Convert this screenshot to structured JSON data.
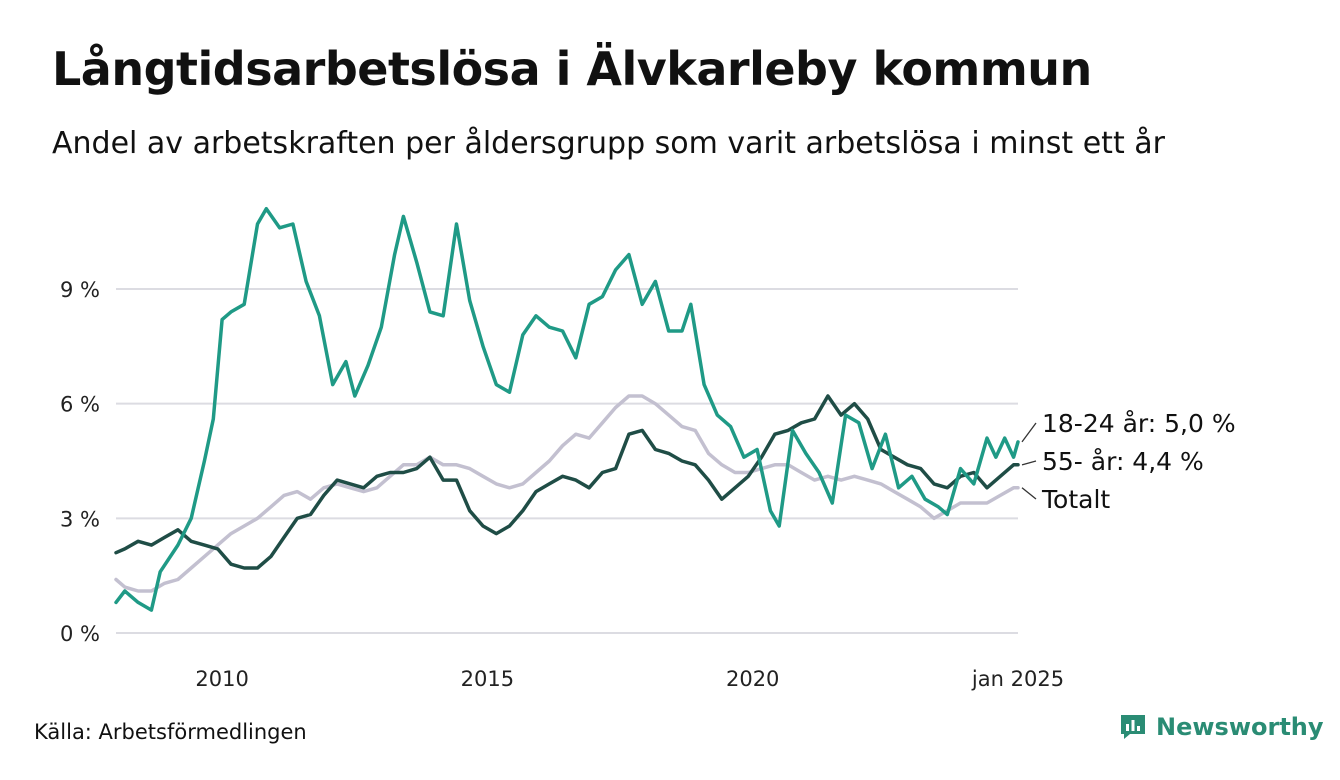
{
  "title": "Långtidsarbetslösa i Älvkarleby kommun",
  "subtitle": "Andel av arbetskraften per åldersgrupp som varit arbetslösa i minst ett år",
  "source": "Källa: Arbetsförmedlingen",
  "brand": {
    "name": "Newsworthy",
    "icon": "newsworthy-logo-icon",
    "color": "#2a8c74"
  },
  "chart_data": {
    "type": "line",
    "xlim": [
      "2008-01",
      "2025-01"
    ],
    "ylim": [
      0,
      12
    ],
    "x_ticks": [
      {
        "label": "2010",
        "date": "2010-01"
      },
      {
        "label": "2015",
        "date": "2015-01"
      },
      {
        "label": "2020",
        "date": "2020-01"
      },
      {
        "label": "jan 2025",
        "date": "2025-01"
      }
    ],
    "y_ticks": [
      {
        "label": "0 %",
        "value": 0
      },
      {
        "label": "3 %",
        "value": 3
      },
      {
        "label": "6 %",
        "value": 6
      },
      {
        "label": "9 %",
        "value": 9
      }
    ],
    "grid": "horizontal",
    "legend": "end-of-line labels",
    "series": [
      {
        "label": "Totalt",
        "color": "#c3c0d0",
        "points": [
          [
            "2008-01",
            1.4
          ],
          [
            "2008-03",
            1.2
          ],
          [
            "2008-06",
            1.1
          ],
          [
            "2008-09",
            1.1
          ],
          [
            "2008-12",
            1.3
          ],
          [
            "2009-03",
            1.4
          ],
          [
            "2009-06",
            1.7
          ],
          [
            "2009-09",
            2.0
          ],
          [
            "2009-12",
            2.3
          ],
          [
            "2010-03",
            2.6
          ],
          [
            "2010-06",
            2.8
          ],
          [
            "2010-09",
            3.0
          ],
          [
            "2010-12",
            3.3
          ],
          [
            "2011-03",
            3.6
          ],
          [
            "2011-06",
            3.7
          ],
          [
            "2011-09",
            3.5
          ],
          [
            "2011-12",
            3.8
          ],
          [
            "2012-03",
            3.9
          ],
          [
            "2012-06",
            3.8
          ],
          [
            "2012-09",
            3.7
          ],
          [
            "2012-12",
            3.8
          ],
          [
            "2013-03",
            4.1
          ],
          [
            "2013-06",
            4.4
          ],
          [
            "2013-09",
            4.4
          ],
          [
            "2013-12",
            4.6
          ],
          [
            "2014-03",
            4.4
          ],
          [
            "2014-06",
            4.4
          ],
          [
            "2014-09",
            4.3
          ],
          [
            "2014-12",
            4.1
          ],
          [
            "2015-03",
            3.9
          ],
          [
            "2015-06",
            3.8
          ],
          [
            "2015-09",
            3.9
          ],
          [
            "2015-12",
            4.2
          ],
          [
            "2016-03",
            4.5
          ],
          [
            "2016-06",
            4.9
          ],
          [
            "2016-09",
            5.2
          ],
          [
            "2016-12",
            5.1
          ],
          [
            "2017-03",
            5.5
          ],
          [
            "2017-06",
            5.9
          ],
          [
            "2017-09",
            6.2
          ],
          [
            "2017-12",
            6.2
          ],
          [
            "2018-03",
            6.0
          ],
          [
            "2018-06",
            5.7
          ],
          [
            "2018-09",
            5.4
          ],
          [
            "2018-12",
            5.3
          ],
          [
            "2019-03",
            4.7
          ],
          [
            "2019-06",
            4.4
          ],
          [
            "2019-09",
            4.2
          ],
          [
            "2019-12",
            4.2
          ],
          [
            "2020-03",
            4.3
          ],
          [
            "2020-06",
            4.4
          ],
          [
            "2020-09",
            4.4
          ],
          [
            "2020-12",
            4.2
          ],
          [
            "2021-03",
            4.0
          ],
          [
            "2021-06",
            4.1
          ],
          [
            "2021-09",
            4.0
          ],
          [
            "2021-12",
            4.1
          ],
          [
            "2022-03",
            4.0
          ],
          [
            "2022-06",
            3.9
          ],
          [
            "2022-09",
            3.7
          ],
          [
            "2022-12",
            3.5
          ],
          [
            "2023-03",
            3.3
          ],
          [
            "2023-06",
            3.0
          ],
          [
            "2023-09",
            3.2
          ],
          [
            "2023-12",
            3.4
          ],
          [
            "2024-03",
            3.4
          ],
          [
            "2024-06",
            3.4
          ],
          [
            "2024-09",
            3.6
          ],
          [
            "2024-12",
            3.8
          ],
          [
            "2025-01",
            3.8
          ]
        ]
      },
      {
        "label": "55- år: 4,4 %",
        "color": "#1f4d46",
        "points": [
          [
            "2008-01",
            2.1
          ],
          [
            "2008-03",
            2.2
          ],
          [
            "2008-06",
            2.4
          ],
          [
            "2008-09",
            2.3
          ],
          [
            "2008-12",
            2.5
          ],
          [
            "2009-03",
            2.7
          ],
          [
            "2009-06",
            2.4
          ],
          [
            "2009-09",
            2.3
          ],
          [
            "2009-12",
            2.2
          ],
          [
            "2010-03",
            1.8
          ],
          [
            "2010-06",
            1.7
          ],
          [
            "2010-09",
            1.7
          ],
          [
            "2010-12",
            2.0
          ],
          [
            "2011-03",
            2.5
          ],
          [
            "2011-06",
            3.0
          ],
          [
            "2011-09",
            3.1
          ],
          [
            "2011-12",
            3.6
          ],
          [
            "2012-03",
            4.0
          ],
          [
            "2012-06",
            3.9
          ],
          [
            "2012-09",
            3.8
          ],
          [
            "2012-12",
            4.1
          ],
          [
            "2013-03",
            4.2
          ],
          [
            "2013-06",
            4.2
          ],
          [
            "2013-09",
            4.3
          ],
          [
            "2013-12",
            4.6
          ],
          [
            "2014-03",
            4.0
          ],
          [
            "2014-06",
            4.0
          ],
          [
            "2014-09",
            3.2
          ],
          [
            "2014-12",
            2.8
          ],
          [
            "2015-03",
            2.6
          ],
          [
            "2015-06",
            2.8
          ],
          [
            "2015-09",
            3.2
          ],
          [
            "2015-12",
            3.7
          ],
          [
            "2016-03",
            3.9
          ],
          [
            "2016-06",
            4.1
          ],
          [
            "2016-09",
            4.0
          ],
          [
            "2016-12",
            3.8
          ],
          [
            "2017-03",
            4.2
          ],
          [
            "2017-06",
            4.3
          ],
          [
            "2017-09",
            5.2
          ],
          [
            "2017-12",
            5.3
          ],
          [
            "2018-03",
            4.8
          ],
          [
            "2018-06",
            4.7
          ],
          [
            "2018-09",
            4.5
          ],
          [
            "2018-12",
            4.4
          ],
          [
            "2019-03",
            4.0
          ],
          [
            "2019-06",
            3.5
          ],
          [
            "2019-09",
            3.8
          ],
          [
            "2019-12",
            4.1
          ],
          [
            "2020-03",
            4.6
          ],
          [
            "2020-06",
            5.2
          ],
          [
            "2020-09",
            5.3
          ],
          [
            "2020-12",
            5.5
          ],
          [
            "2021-03",
            5.6
          ],
          [
            "2021-06",
            6.2
          ],
          [
            "2021-09",
            5.7
          ],
          [
            "2021-12",
            6.0
          ],
          [
            "2022-03",
            5.6
          ],
          [
            "2022-06",
            4.8
          ],
          [
            "2022-09",
            4.6
          ],
          [
            "2022-12",
            4.4
          ],
          [
            "2023-03",
            4.3
          ],
          [
            "2023-06",
            3.9
          ],
          [
            "2023-09",
            3.8
          ],
          [
            "2023-12",
            4.1
          ],
          [
            "2024-03",
            4.2
          ],
          [
            "2024-06",
            3.8
          ],
          [
            "2024-09",
            4.1
          ],
          [
            "2024-12",
            4.4
          ],
          [
            "2025-01",
            4.4
          ]
        ]
      },
      {
        "label": "18-24 år: 5,0 %",
        "color": "#1f9a86",
        "points": [
          [
            "2008-01",
            0.8
          ],
          [
            "2008-03",
            1.1
          ],
          [
            "2008-06",
            0.8
          ],
          [
            "2008-09",
            0.6
          ],
          [
            "2008-11",
            1.6
          ],
          [
            "2009-03",
            2.3
          ],
          [
            "2009-06",
            3.0
          ],
          [
            "2009-09",
            4.5
          ],
          [
            "2009-11",
            5.6
          ],
          [
            "2010-01",
            8.2
          ],
          [
            "2010-03",
            8.4
          ],
          [
            "2010-06",
            8.6
          ],
          [
            "2010-09",
            10.7
          ],
          [
            "2010-11",
            11.1
          ],
          [
            "2011-02",
            10.6
          ],
          [
            "2011-05",
            10.7
          ],
          [
            "2011-08",
            9.2
          ],
          [
            "2011-11",
            8.3
          ],
          [
            "2012-02",
            6.5
          ],
          [
            "2012-05",
            7.1
          ],
          [
            "2012-07",
            6.2
          ],
          [
            "2012-10",
            7.0
          ],
          [
            "2013-01",
            8.0
          ],
          [
            "2013-04",
            9.9
          ],
          [
            "2013-06",
            10.9
          ],
          [
            "2013-09",
            9.7
          ],
          [
            "2013-12",
            8.4
          ],
          [
            "2014-03",
            8.3
          ],
          [
            "2014-06",
            10.7
          ],
          [
            "2014-09",
            8.7
          ],
          [
            "2014-12",
            7.5
          ],
          [
            "2015-03",
            6.5
          ],
          [
            "2015-06",
            6.3
          ],
          [
            "2015-09",
            7.8
          ],
          [
            "2015-12",
            8.3
          ],
          [
            "2016-03",
            8.0
          ],
          [
            "2016-06",
            7.9
          ],
          [
            "2016-09",
            7.2
          ],
          [
            "2016-12",
            8.6
          ],
          [
            "2017-03",
            8.8
          ],
          [
            "2017-06",
            9.5
          ],
          [
            "2017-09",
            9.9
          ],
          [
            "2017-12",
            8.6
          ],
          [
            "2018-03",
            9.2
          ],
          [
            "2018-06",
            7.9
          ],
          [
            "2018-09",
            7.9
          ],
          [
            "2018-11",
            8.6
          ],
          [
            "2019-02",
            6.5
          ],
          [
            "2019-05",
            5.7
          ],
          [
            "2019-08",
            5.4
          ],
          [
            "2019-11",
            4.6
          ],
          [
            "2020-02",
            4.8
          ],
          [
            "2020-05",
            3.2
          ],
          [
            "2020-07",
            2.8
          ],
          [
            "2020-10",
            5.3
          ],
          [
            "2021-01",
            4.7
          ],
          [
            "2021-04",
            4.2
          ],
          [
            "2021-07",
            3.4
          ],
          [
            "2021-10",
            5.7
          ],
          [
            "2022-01",
            5.5
          ],
          [
            "2022-04",
            4.3
          ],
          [
            "2022-07",
            5.2
          ],
          [
            "2022-10",
            3.8
          ],
          [
            "2023-01",
            4.1
          ],
          [
            "2023-04",
            3.5
          ],
          [
            "2023-07",
            3.3
          ],
          [
            "2023-09",
            3.1
          ],
          [
            "2023-12",
            4.3
          ],
          [
            "2024-03",
            3.9
          ],
          [
            "2024-06",
            5.1
          ],
          [
            "2024-08",
            4.6
          ],
          [
            "2024-10",
            5.1
          ],
          [
            "2024-12",
            4.6
          ],
          [
            "2025-01",
            5.0
          ]
        ]
      }
    ]
  }
}
